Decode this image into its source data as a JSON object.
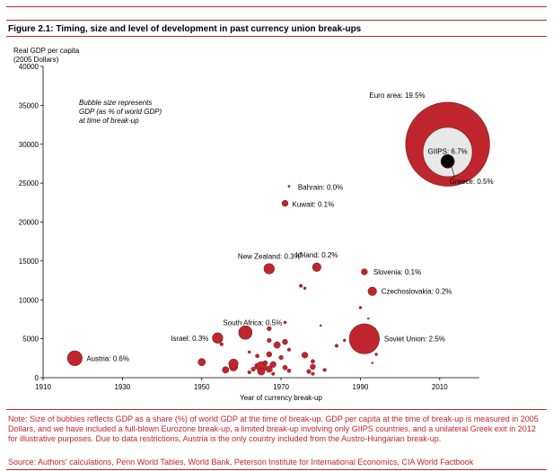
{
  "figure": {
    "title": "Figure 2.1: Timing, size and level of development in past currency union break-ups",
    "note": "Note: Size of bubbles reflects GDP as a share (%) of world GDP at the time of break-up.  GDP per capita at the time of break-up is measured in 2005 Dollars, and we have included a full-blown Eurozone break-up, a limited break-up involving only GIIPS countries, and a unilateral Greek exit in 2012 for illustrative purposes. Due to data restrictions, Austria is the only country included from the Austro-Hungarian break-up.",
    "source": "Source: Authors' calculations, Penn World Tables, World Bank, Peterson Institute for International Economics, CIA World Factbook",
    "accent_color": "#c0262d"
  },
  "chart_data": {
    "type": "scatter",
    "title": "Figure 2.1: Timing, size and level of development in past currency union break-ups",
    "ylabel_lines": [
      "Real GDP per capita",
      "(2005 Dollars)"
    ],
    "xlabel": "Year of currency break-up",
    "annotation_lines": [
      "Bubble size represents",
      "GDP (as % of world GDP)",
      "at time of break-up"
    ],
    "xlim": [
      1910,
      2020
    ],
    "ylim": [
      0,
      40000
    ],
    "xticks": [
      1910,
      1930,
      1950,
      1970,
      1990,
      2010
    ],
    "yticks": [
      0,
      5000,
      10000,
      15000,
      20000,
      25000,
      30000,
      35000,
      40000
    ],
    "grid": false,
    "colors": {
      "bubble": "#c0262d",
      "bubble_edge": "#7a1a1a",
      "giips": "#e8e8e8",
      "greece": "#000000"
    },
    "labeled_points": [
      {
        "label": "Euro area: 19.5%",
        "x": 2012,
        "y": 30000,
        "share": 19.5
      },
      {
        "label": "GIIPS: 6.7%",
        "x": 2012,
        "y": 29000,
        "share": 6.7
      },
      {
        "label": "Greece: 0.5%",
        "x": 2012,
        "y": 27800,
        "share": 0.5
      },
      {
        "label": "Bahrain: 0.0%",
        "x": 1972,
        "y": 24600,
        "share": 0.0
      },
      {
        "label": "Kuwait: 0.1%",
        "x": 1971,
        "y": 22400,
        "share": 0.1
      },
      {
        "label": "New Zealand: 0.3%",
        "x": 1967,
        "y": 14000,
        "share": 0.3
      },
      {
        "label": "Ireland: 0.2%",
        "x": 1979,
        "y": 14200,
        "share": 0.2
      },
      {
        "label": "Slovenia: 0.1%",
        "x": 1991,
        "y": 13600,
        "share": 0.1
      },
      {
        "label": "Czechoslovakia: 0.2%",
        "x": 1993,
        "y": 11100,
        "share": 0.2
      },
      {
        "label": "South Africa: 0.5%",
        "x": 1961,
        "y": 5800,
        "share": 0.5
      },
      {
        "label": "Israel: 0.3%",
        "x": 1954,
        "y": 5100,
        "share": 0.3
      },
      {
        "label": "Soviet Union: 2.5%",
        "x": 1991,
        "y": 5000,
        "share": 2.5
      },
      {
        "label": "Austria: 0.6%",
        "x": 1918,
        "y": 2500,
        "share": 0.6
      }
    ],
    "unlabeled_points": [
      {
        "x": 1950,
        "y": 2000,
        "share": 0.15
      },
      {
        "x": 1955,
        "y": 4300,
        "share": 0.03
      },
      {
        "x": 1956,
        "y": 1000,
        "share": 0.12
      },
      {
        "x": 1958,
        "y": 1400,
        "share": 0.2
      },
      {
        "x": 1958,
        "y": 1800,
        "share": 0.25
      },
      {
        "x": 1962,
        "y": 3300,
        "share": 0.02
      },
      {
        "x": 1962,
        "y": 700,
        "share": 0.03
      },
      {
        "x": 1963,
        "y": 1100,
        "share": 0.05
      },
      {
        "x": 1964,
        "y": 1500,
        "share": 0.08
      },
      {
        "x": 1964,
        "y": 2800,
        "share": 0.04
      },
      {
        "x": 1965,
        "y": 1400,
        "share": 0.3
      },
      {
        "x": 1965,
        "y": 800,
        "share": 0.15
      },
      {
        "x": 1966,
        "y": 1900,
        "share": 0.06
      },
      {
        "x": 1967,
        "y": 1100,
        "share": 0.12
      },
      {
        "x": 1967,
        "y": 6300,
        "share": 0.05
      },
      {
        "x": 1967,
        "y": 3000,
        "share": 0.08
      },
      {
        "x": 1967,
        "y": 4800,
        "share": 0.05
      },
      {
        "x": 1968,
        "y": 500,
        "share": 0.03
      },
      {
        "x": 1968,
        "y": 1700,
        "share": 0.1
      },
      {
        "x": 1969,
        "y": 4200,
        "share": 0.12
      },
      {
        "x": 1970,
        "y": 2600,
        "share": 0.05
      },
      {
        "x": 1971,
        "y": 1300,
        "share": 0.06
      },
      {
        "x": 1971,
        "y": 4600,
        "share": 0.08
      },
      {
        "x": 1971,
        "y": 7100,
        "share": 0.02
      },
      {
        "x": 1972,
        "y": 900,
        "share": 0.04
      },
      {
        "x": 1972,
        "y": 3600,
        "share": 0.03
      },
      {
        "x": 1975,
        "y": 11800,
        "share": 0.03
      },
      {
        "x": 1975,
        "y": 16000,
        "share": 0.01
      },
      {
        "x": 1976,
        "y": 11500,
        "share": 0.02
      },
      {
        "x": 1976,
        "y": 2900,
        "share": 0.1
      },
      {
        "x": 1977,
        "y": 800,
        "share": 0.05
      },
      {
        "x": 1978,
        "y": 1400,
        "share": 0.08
      },
      {
        "x": 1978,
        "y": 2100,
        "share": 0.04
      },
      {
        "x": 1978,
        "y": 500,
        "share": 0.03
      },
      {
        "x": 1980,
        "y": 6700,
        "share": 0.01
      },
      {
        "x": 1981,
        "y": 1000,
        "share": 0.03
      },
      {
        "x": 1984,
        "y": 4100,
        "share": 0.03
      },
      {
        "x": 1986,
        "y": 4800,
        "share": 0.02
      },
      {
        "x": 1990,
        "y": 9000,
        "share": 0.02
      },
      {
        "x": 1992,
        "y": 7600,
        "share": 0.005
      },
      {
        "x": 1993,
        "y": 1900,
        "share": 0.01
      },
      {
        "x": 1994,
        "y": 3000,
        "share": 0.02
      }
    ]
  }
}
